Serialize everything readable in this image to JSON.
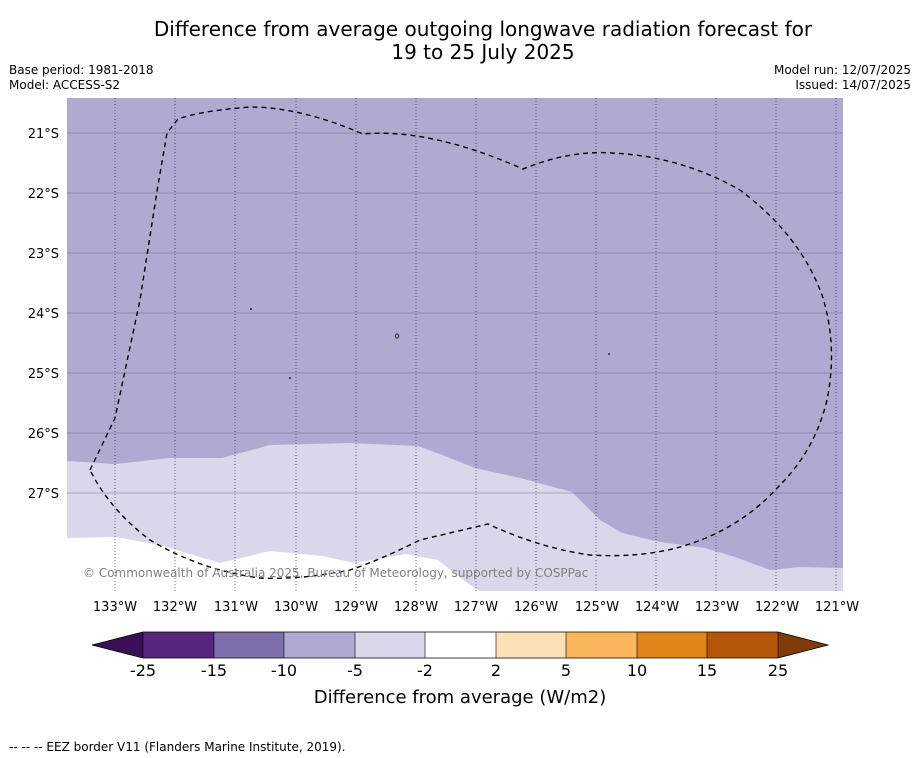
{
  "title_line1": "Difference from average outgoing longwave radiation forecast for",
  "title_line2": "19 to 25 July 2025",
  "meta_left": {
    "base_period": "Base period: 1981-2018",
    "model": "Model: ACCESS-S2"
  },
  "meta_right": {
    "model_run": "Model run: 12/07/2025",
    "issued": "Issued: 14/07/2025"
  },
  "lat_labels": [
    "21°S",
    "22°S",
    "23°S",
    "24°S",
    "25°S",
    "26°S",
    "27°S"
  ],
  "lon_labels": [
    "133°W",
    "132°W",
    "131°W",
    "130°W",
    "129°W",
    "128°W",
    "127°W",
    "126°W",
    "125°W",
    "124°W",
    "123°W",
    "122°W",
    "121°W"
  ],
  "copyright": "© Commonwealth of Australia 2025, Bureau of Meteorology, supported by COSPPac",
  "colorbar": {
    "ticks": [
      "-25",
      "-15",
      "-10",
      "-5",
      "-2",
      "2",
      "5",
      "10",
      "15",
      "25"
    ],
    "colors": [
      "#3b0f57",
      "#56267f",
      "#7d6faa",
      "#b0aad3",
      "#d8d8ea",
      "#ffffff",
      "#fde0b6",
      "#fbb65c",
      "#e1841a",
      "#b45607",
      "#7f3b08"
    ],
    "label": "Difference from average (W/m2)"
  },
  "map_colors": {
    "light_purple": "#b0aad3",
    "pale": "#d8d8ea",
    "white": "#ffffff"
  },
  "footer": "--  --  -- EEZ border V11 (Flanders Marine Institute, 2019)."
}
